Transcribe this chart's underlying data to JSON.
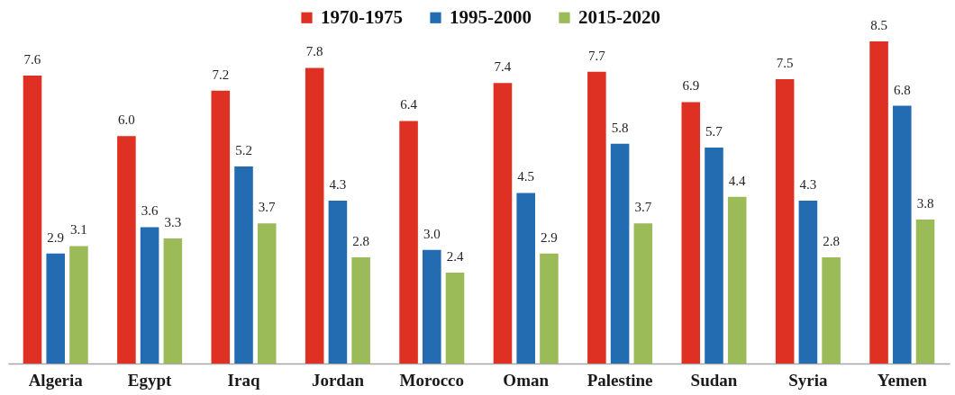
{
  "chart_data": {
    "type": "bar",
    "categories": [
      "Algeria",
      "Egypt",
      "Iraq",
      "Jordan",
      "Morocco",
      "Oman",
      "Palestine",
      "Sudan",
      "Syria",
      "Yemen"
    ],
    "series": [
      {
        "name": "1970-1975",
        "color": "#df3123",
        "values": [
          7.6,
          6.0,
          7.2,
          7.8,
          6.4,
          7.4,
          7.7,
          6.9,
          7.5,
          8.5
        ],
        "value_labels": [
          "7.6",
          "6.0",
          "7.2",
          "7.8",
          "6.4",
          "7.4",
          "7.7",
          "6.9",
          "7.5",
          "8.5"
        ]
      },
      {
        "name": "1995-2000",
        "color": "#236cb2",
        "values": [
          2.9,
          3.6,
          5.2,
          4.3,
          3.0,
          4.5,
          5.8,
          5.7,
          4.3,
          6.8
        ],
        "value_labels": [
          "2.9",
          "3.6",
          "5.2",
          "4.3",
          "3.0",
          "4.5",
          "5.8",
          "5.7",
          "4.3",
          "6.8"
        ]
      },
      {
        "name": "2015-2020",
        "color": "#9bbb59",
        "values": [
          3.1,
          3.3,
          3.7,
          2.8,
          2.4,
          2.9,
          3.7,
          4.4,
          2.8,
          3.8
        ],
        "value_labels": [
          "3.1",
          "3.3",
          "3.7",
          "2.8",
          "2.4",
          "2.9",
          "3.7",
          "4.4",
          "2.8",
          "3.8"
        ]
      }
    ],
    "legend": "top",
    "tick_labels": "x"
  }
}
